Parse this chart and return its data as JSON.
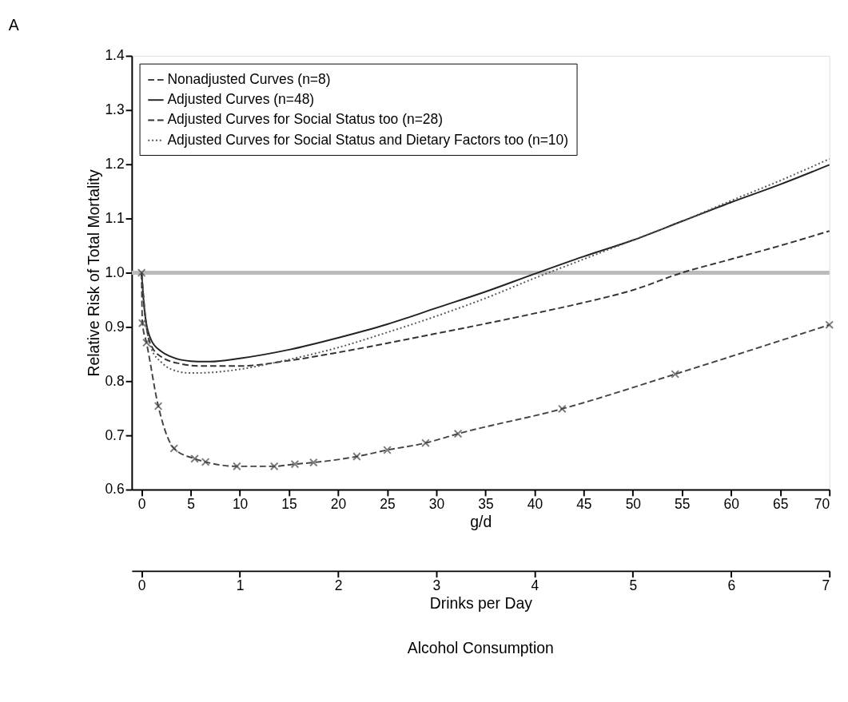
{
  "chart_data": {
    "type": "line",
    "title": "A",
    "xlabel": "g/d",
    "ylabel": "Relative Risk of Total Mortality",
    "x2label": "Drinks per Day",
    "annotations": [
      "Alcohol Consumption"
    ],
    "xlim": [
      -1,
      70
    ],
    "xticks": [
      0,
      5,
      10,
      15,
      20,
      25,
      30,
      35,
      40,
      45,
      50,
      55,
      60,
      65,
      70
    ],
    "x2lim": [
      -0.1,
      7
    ],
    "x2ticks": [
      0,
      1,
      2,
      3,
      4,
      5,
      6,
      7
    ],
    "ylim": [
      0.6,
      1.4
    ],
    "yticks": [
      0.6,
      0.7,
      0.8,
      0.9,
      {
        "value": 1,
        "label": "1.0"
      },
      1.1,
      1.2,
      1.3,
      1.4
    ],
    "grid": false,
    "legend": "top left",
    "ref_lines": [
      {
        "axis": "y",
        "value": 1.0,
        "label": null,
        "color": "#bbbbbb"
      }
    ],
    "series": [
      {
        "name": "Nonadjusted Curves (n=8)",
        "color": "#444444",
        "marker": "cross",
        "line_style": "dashed",
        "x": [
          0,
          0.08,
          0.5,
          1.7,
          3.3,
          5.4,
          6.5,
          9.7,
          13.5,
          15.6,
          17.5,
          21.9,
          25,
          28.9,
          32.2,
          42.8,
          54.3,
          70
        ],
        "values": [
          1.0,
          0.907,
          0.871,
          0.754,
          0.676,
          0.657,
          0.651,
          0.643,
          0.643,
          0.647,
          0.65,
          0.661,
          0.673,
          0.686,
          0.703,
          0.749,
          0.813,
          0.904
        ]
      },
      {
        "name": "Adjusted Curves (n=48)",
        "color": "#222222",
        "marker": "none",
        "line_style": "solid",
        "x": [
          0,
          0.3,
          1,
          2,
          3,
          5,
          7,
          10,
          15,
          20,
          25,
          30,
          35,
          40,
          45,
          50,
          55,
          60,
          65,
          70
        ],
        "values": [
          1.0,
          0.93,
          0.875,
          0.855,
          0.845,
          0.837,
          0.836,
          0.842,
          0.858,
          0.88,
          0.905,
          0.935,
          0.965,
          0.998,
          1.03,
          1.06,
          1.095,
          1.13,
          1.163,
          1.199
        ]
      },
      {
        "name": "Adjusted Curves for Social Status too (n=28)",
        "color": "#333333",
        "marker": "none",
        "line_style": "dashed",
        "x": [
          0,
          0.5,
          1,
          2,
          4,
          6,
          10,
          15,
          20,
          25,
          30,
          35,
          40,
          45,
          50,
          55,
          60,
          65,
          70
        ],
        "values": [
          1.0,
          0.9,
          0.865,
          0.845,
          0.832,
          0.828,
          0.828,
          0.838,
          0.853,
          0.87,
          0.888,
          0.906,
          0.925,
          0.945,
          0.968,
          1.0,
          1.025,
          1.05,
          1.077
        ]
      },
      {
        "name": "Adjusted Curves for Social Status and Dietary Factors too (n=10)",
        "color": "#555555",
        "marker": "none",
        "line_style": "dotted",
        "x": [
          0,
          0.5,
          1,
          2,
          3,
          5,
          7,
          10,
          15,
          20,
          25,
          30,
          35,
          40,
          45,
          50,
          55,
          60,
          65,
          70
        ],
        "values": [
          1.0,
          0.9,
          0.86,
          0.835,
          0.822,
          0.815,
          0.816,
          0.822,
          0.84,
          0.862,
          0.89,
          0.92,
          0.953,
          0.99,
          1.025,
          1.06,
          1.095,
          1.133,
          1.17,
          1.21
        ]
      }
    ]
  }
}
